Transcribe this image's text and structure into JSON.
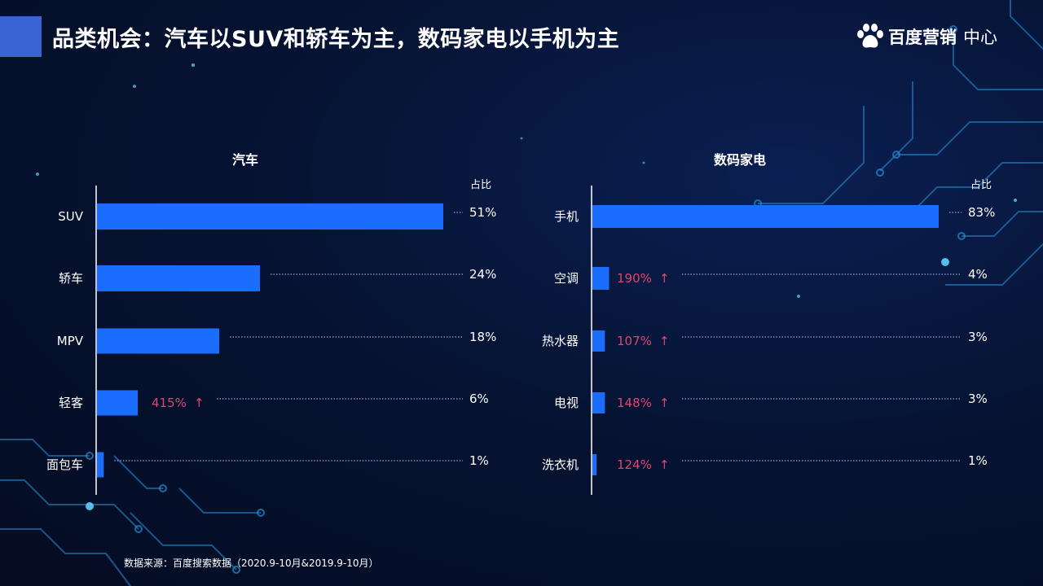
{
  "title": "品类机会：汽车以SUV和轿车为主，数码家电以手机为主",
  "logo": {
    "brand": "百度营销",
    "sub": "中心",
    "icon": "baidu-paw-icon"
  },
  "footnote": "数据来源：百度搜索数据（2020.9-10月&2019.9-10月）",
  "colors": {
    "bar": "#1a6dff",
    "growth": "#e0456e",
    "text": "#ffffff",
    "dots": "#8fa6d6",
    "title_accent": "#3a63d4"
  },
  "chart_data": [
    {
      "type": "bar",
      "orientation": "horizontal",
      "title": "汽车",
      "value_header": "占比",
      "categories": [
        "SUV",
        "轿车",
        "MPV",
        "轻客",
        "面包车"
      ],
      "values": [
        51,
        24,
        18,
        6,
        1
      ],
      "value_labels": [
        "51%",
        "24%",
        "18%",
        "6%",
        "1%"
      ],
      "growth_labels": [
        "",
        "",
        "",
        "415%",
        ""
      ],
      "unit": "%"
    },
    {
      "type": "bar",
      "orientation": "horizontal",
      "title": "数码家电",
      "value_header": "占比",
      "categories": [
        "手机",
        "空调",
        "热水器",
        "电视",
        "洗衣机"
      ],
      "values": [
        83,
        4,
        3,
        3,
        1
      ],
      "value_labels": [
        "83%",
        "4%",
        "3%",
        "3%",
        "1%"
      ],
      "growth_labels": [
        "",
        "190%",
        "107%",
        "148%",
        "124%"
      ],
      "unit": "%"
    }
  ]
}
